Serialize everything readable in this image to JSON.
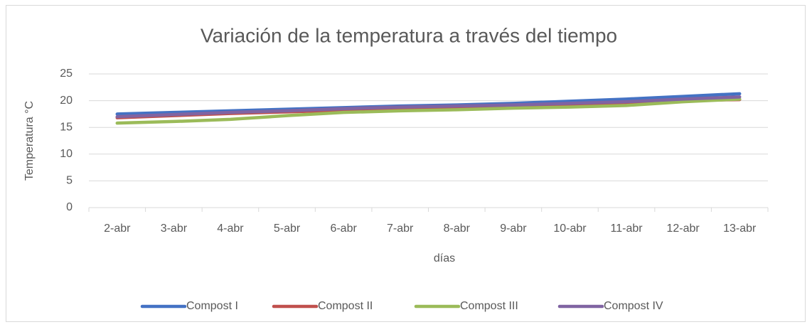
{
  "chart_data": {
    "type": "line",
    "title": "Variación de la temperatura  a través del tiempo",
    "x_label": "días",
    "y_label": "Temperatura °C",
    "categories": [
      "2-abr",
      "3-abr",
      "4-abr",
      "5-abr",
      "6-abr",
      "7-abr",
      "8-abr",
      "9-abr",
      "10-abr",
      "11-abr",
      "12-abr",
      "13-abr"
    ],
    "series": [
      {
        "name": "Compost I",
        "color": "#4472c4",
        "values": [
          17.5,
          17.8,
          18.1,
          18.4,
          18.7,
          19.0,
          19.2,
          19.5,
          19.9,
          20.3,
          20.8,
          21.3
        ]
      },
      {
        "name": "Compost II",
        "color": "#c0504d",
        "values": [
          16.8,
          17.2,
          17.6,
          17.9,
          18.2,
          18.5,
          18.7,
          19.0,
          19.3,
          19.6,
          20.0,
          20.2
        ]
      },
      {
        "name": "Compost III",
        "color": "#9bbb59",
        "values": [
          15.8,
          16.1,
          16.5,
          17.2,
          17.8,
          18.1,
          18.3,
          18.6,
          18.8,
          19.1,
          19.8,
          20.3
        ]
      },
      {
        "name": "Compost IV",
        "color": "#8064a2",
        "values": [
          17.0,
          17.4,
          17.8,
          18.1,
          18.5,
          18.8,
          19.0,
          19.2,
          19.5,
          19.8,
          20.3,
          20.7
        ]
      }
    ],
    "ylim": [
      0,
      25
    ],
    "yticks": [
      0,
      5,
      10,
      15,
      20,
      25
    ],
    "grid": true,
    "legend": "bottom"
  }
}
